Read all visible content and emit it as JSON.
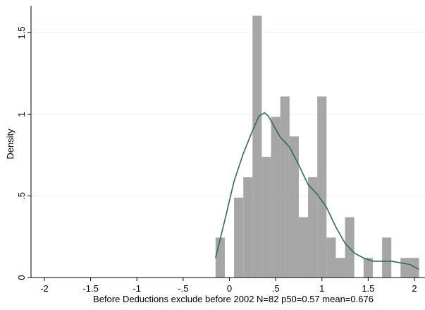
{
  "chart_data": {
    "type": "bar",
    "subtype": "histogram-with-density-curve",
    "xlabel": "Before Deductions exclude before 2002 N=82 p50=0.57 mean=0.676",
    "ylabel": "Density",
    "xlim": [
      -2.1,
      2.1
    ],
    "ylim": [
      0,
      1.65
    ],
    "x_ticks": [
      -2,
      -1.5,
      -1,
      -0.5,
      0,
      0.5,
      1,
      1.5,
      2
    ],
    "x_tick_labels": [
      "-2",
      "-1.5",
      "-1",
      "-.5",
      "0",
      ".5",
      "1",
      "1.5",
      "2"
    ],
    "y_ticks": [
      0,
      0.5,
      1,
      1.5
    ],
    "y_tick_labels": [
      "0",
      ".5",
      "1",
      "1.5"
    ],
    "grid": true,
    "bar_color": "#a6a6a6",
    "curve_color": "#2e6b5e",
    "bin_width": 0.1,
    "bins": [
      {
        "x0": -0.15,
        "density": 0.245
      },
      {
        "x0": -0.05,
        "density": 0.0
      },
      {
        "x0": 0.05,
        "density": 0.49
      },
      {
        "x0": 0.15,
        "density": 0.615
      },
      {
        "x0": 0.25,
        "density": 1.605
      },
      {
        "x0": 0.35,
        "density": 0.74
      },
      {
        "x0": 0.45,
        "density": 0.985
      },
      {
        "x0": 0.55,
        "density": 1.11
      },
      {
        "x0": 0.65,
        "density": 0.865
      },
      {
        "x0": 0.75,
        "density": 0.37
      },
      {
        "x0": 0.85,
        "density": 0.615
      },
      {
        "x0": 0.95,
        "density": 1.11
      },
      {
        "x0": 1.05,
        "density": 0.245
      },
      {
        "x0": 1.15,
        "density": 0.12
      },
      {
        "x0": 1.25,
        "density": 0.37
      },
      {
        "x0": 1.35,
        "density": 0.0
      },
      {
        "x0": 1.45,
        "density": 0.12
      },
      {
        "x0": 1.55,
        "density": 0.0
      },
      {
        "x0": 1.65,
        "density": 0.245
      },
      {
        "x0": 1.75,
        "density": 0.0
      },
      {
        "x0": 1.85,
        "density": 0.12
      },
      {
        "x0": 1.95,
        "density": 0.12
      }
    ],
    "density_curve": {
      "x": [
        -0.15,
        -0.05,
        0.05,
        0.15,
        0.25,
        0.32,
        0.38,
        0.42,
        0.48,
        0.55,
        0.65,
        0.75,
        0.85,
        0.95,
        1.05,
        1.15,
        1.25,
        1.35,
        1.45,
        1.55,
        1.65,
        1.75,
        1.85,
        1.95,
        2.05
      ],
      "y": [
        0.12,
        0.35,
        0.59,
        0.76,
        0.9,
        0.99,
        1.01,
        0.99,
        0.93,
        0.86,
        0.8,
        0.69,
        0.57,
        0.51,
        0.43,
        0.31,
        0.21,
        0.15,
        0.12,
        0.1,
        0.1,
        0.1,
        0.09,
        0.08,
        0.05
      ]
    }
  }
}
